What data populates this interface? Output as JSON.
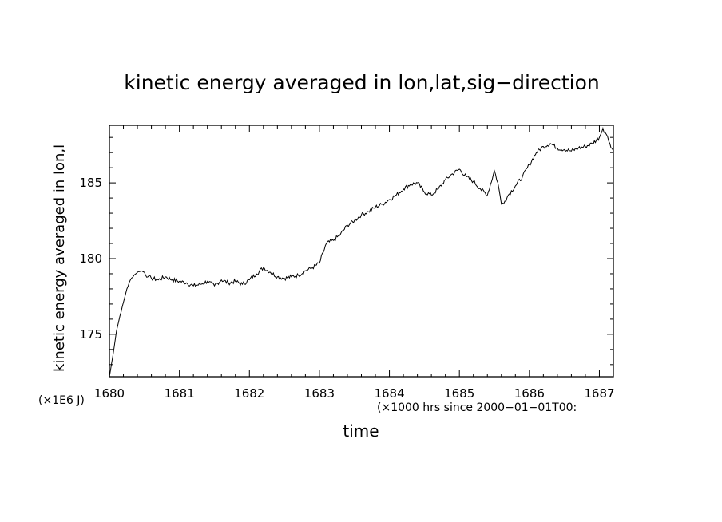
{
  "chart_data": {
    "type": "line",
    "title": "kinetic energy averaged in lon,lat,sig−direction",
    "xlabel": "time",
    "ylabel": "kinetic energy averaged in lon,l",
    "x_unit": "(×1000 hrs  since 2000−01−01T00:",
    "y_unit": "(×1E6 J)",
    "xlim": [
      1680,
      1687.2
    ],
    "ylim": [
      172.2,
      188.8
    ],
    "x_ticks": [
      "1680",
      "1681",
      "1682",
      "1683",
      "1684",
      "1685",
      "1686",
      "1687"
    ],
    "y_ticks": [
      "175",
      "180",
      "185"
    ],
    "grid": false,
    "line_color": "#000000",
    "series": [
      {
        "x": [
          1680.0,
          1680.05,
          1680.1,
          1680.15,
          1680.2,
          1680.25,
          1680.3,
          1680.35,
          1680.4,
          1680.45,
          1680.5,
          1680.55,
          1680.6,
          1680.7,
          1680.8,
          1680.9,
          1681.0,
          1681.1,
          1681.2,
          1681.3,
          1681.4,
          1681.5,
          1681.6,
          1681.7,
          1681.8,
          1681.9,
          1682.0,
          1682.1,
          1682.2,
          1682.3,
          1682.4,
          1682.5,
          1682.6,
          1682.7,
          1682.8,
          1682.9,
          1683.0,
          1683.1,
          1683.2,
          1683.3,
          1683.4,
          1683.5,
          1683.6,
          1683.7,
          1683.8,
          1683.9,
          1684.0,
          1684.1,
          1684.2,
          1684.3,
          1684.4,
          1684.5,
          1684.6,
          1684.7,
          1684.8,
          1684.9,
          1685.0,
          1685.1,
          1685.2,
          1685.3,
          1685.4,
          1685.5,
          1685.55,
          1685.6,
          1685.65,
          1685.7,
          1685.8,
          1685.9,
          1686.0,
          1686.1,
          1686.2,
          1686.3,
          1686.4,
          1686.5,
          1686.6,
          1686.7,
          1686.8,
          1686.9,
          1687.0,
          1687.05,
          1687.1,
          1687.15,
          1687.2
        ],
        "y": [
          172.2,
          173.6,
          175.2,
          176.2,
          177.1,
          178.0,
          178.6,
          178.9,
          179.1,
          179.2,
          179.1,
          178.8,
          178.7,
          178.6,
          178.8,
          178.6,
          178.5,
          178.4,
          178.2,
          178.3,
          178.5,
          178.2,
          178.6,
          178.4,
          178.5,
          178.3,
          178.6,
          179.0,
          179.4,
          179.1,
          178.8,
          178.7,
          178.8,
          178.9,
          179.2,
          179.4,
          179.7,
          181.0,
          181.2,
          181.6,
          182.2,
          182.5,
          182.9,
          183.1,
          183.4,
          183.6,
          183.9,
          184.2,
          184.6,
          184.9,
          185.0,
          184.4,
          184.2,
          184.6,
          185.2,
          185.6,
          185.9,
          185.4,
          185.1,
          184.6,
          184.2,
          185.8,
          185.0,
          183.6,
          183.8,
          184.2,
          184.8,
          185.4,
          186.2,
          187.0,
          187.4,
          187.6,
          187.3,
          187.2,
          187.1,
          187.3,
          187.4,
          187.6,
          188.0,
          188.6,
          188.2,
          187.6,
          187.1
        ]
      }
    ]
  }
}
